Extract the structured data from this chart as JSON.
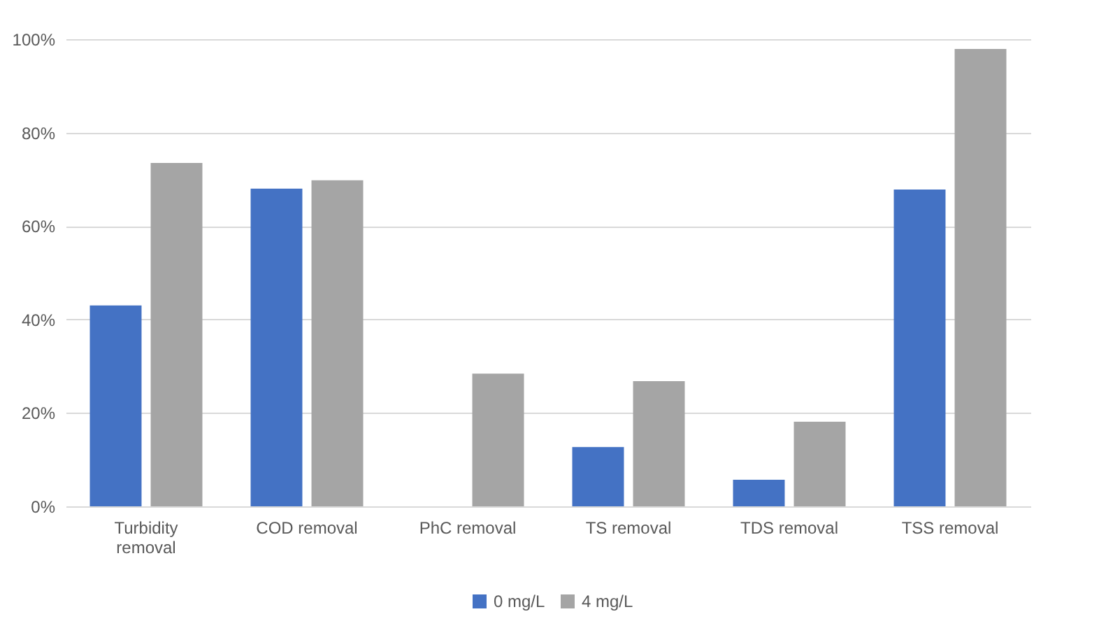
{
  "chart_data": {
    "type": "bar",
    "categories": [
      "Turbidity removal",
      "COD removal",
      "PhC removal",
      "TS removal",
      "TDS removal",
      "TSS removal"
    ],
    "series": [
      {
        "name": "0 mg/L",
        "color": "#4472c4",
        "values": [
          43,
          68,
          null,
          12.7,
          5.7,
          67.8
        ]
      },
      {
        "name": "4 mg/L",
        "color": "#a5a5a5",
        "values": [
          73.5,
          69.8,
          28.4,
          26.8,
          18.1,
          97.9
        ]
      }
    ],
    "ylim": [
      0,
      100
    ],
    "yticks": [
      {
        "value": 0,
        "label": "0%"
      },
      {
        "value": 20,
        "label": "20%"
      },
      {
        "value": 40,
        "label": "40%"
      },
      {
        "value": 60,
        "label": "60%"
      },
      {
        "value": 80,
        "label": "80%"
      },
      {
        "value": 100,
        "label": "100%"
      }
    ],
    "grid": "y",
    "legend": "bottom"
  }
}
